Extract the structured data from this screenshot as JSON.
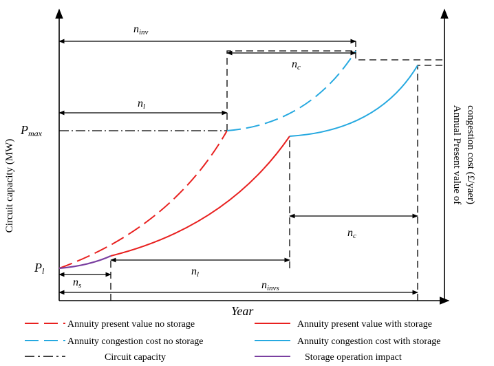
{
  "axes": {
    "y_left_label": "Circuit capacity (MW)",
    "y_right_label_line1": "Annual Present value of",
    "y_right_label_line2": "congestion cost (£/yaer)",
    "x_label": "Year",
    "p_max": {
      "base": "P",
      "sub": "max"
    },
    "p_l": {
      "base": "P",
      "sub": "l"
    }
  },
  "annotations": {
    "n_inv": {
      "base": "n",
      "sub": "inv"
    },
    "n_c_top": {
      "base": "n",
      "sub": "c"
    },
    "n_l_top": {
      "base": "n",
      "sub": "l"
    },
    "n_c_bottom": {
      "base": "n",
      "sub": "c"
    },
    "n_l_bottom": {
      "base": "n",
      "sub": "l"
    },
    "n_s": {
      "base": "n",
      "sub": "s"
    },
    "n_invs": {
      "base": "n",
      "sub": "invs"
    }
  },
  "legend": [
    {
      "label": "Annuity present value  no storage",
      "color": "#e8201f",
      "dash": "long"
    },
    {
      "label": "Annuity present value with storage",
      "color": "#e8201f",
      "dash": "solid"
    },
    {
      "label": "Annuity congestion cost no storage",
      "color": "#26a9e0",
      "dash": "long"
    },
    {
      "label": "Annuity congestion cost  with storage",
      "color": "#26a9e0",
      "dash": "solid"
    },
    {
      "label": "Circuit capacity",
      "color": "#000000",
      "dash": "dashdot"
    },
    {
      "label": "Storage operation impact",
      "color": "#7a3fa0",
      "dash": "solid"
    }
  ],
  "colors": {
    "red": "#e8201f",
    "blue": "#26a9e0",
    "purple": "#7a3fa0",
    "black": "#000000"
  }
}
